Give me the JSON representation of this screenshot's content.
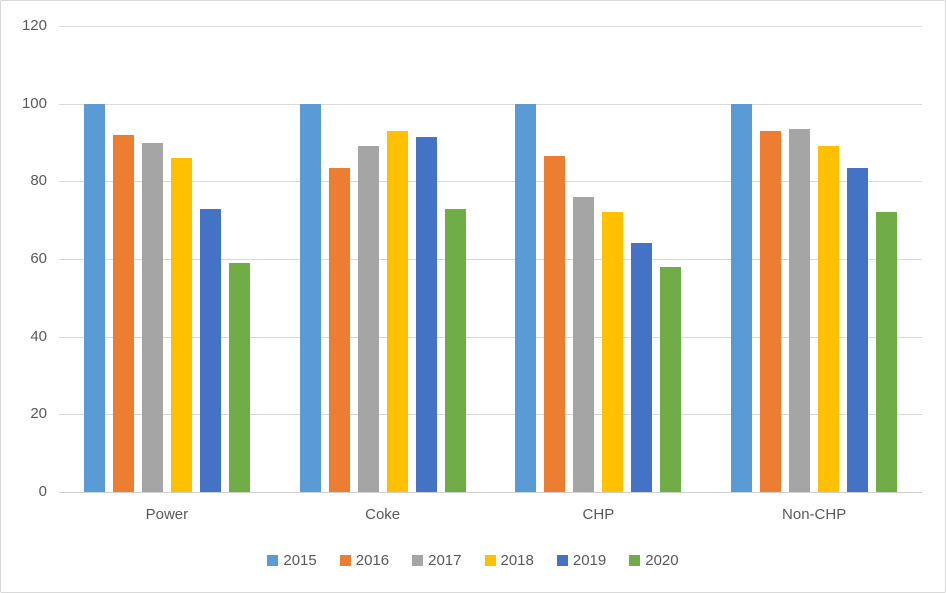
{
  "chart_data": {
    "type": "bar",
    "title": "",
    "xlabel": "",
    "ylabel": "",
    "categories": [
      "Power",
      "Coke",
      "CHP",
      "Non-CHP"
    ],
    "series": [
      {
        "name": "2015",
        "color": "#5B9BD5",
        "values": [
          100,
          100,
          100,
          100
        ]
      },
      {
        "name": "2016",
        "color": "#ED7D31",
        "values": [
          92,
          83.5,
          86.5,
          93
        ]
      },
      {
        "name": "2017",
        "color": "#A5A5A5",
        "values": [
          90,
          89,
          76,
          93.5
        ]
      },
      {
        "name": "2018",
        "color": "#FFC000",
        "values": [
          86,
          93,
          72,
          89
        ]
      },
      {
        "name": "2019",
        "color": "#4472C4",
        "values": [
          73,
          91.3,
          64,
          83.5
        ]
      },
      {
        "name": "2020",
        "color": "#70AD47",
        "values": [
          59,
          73,
          58,
          72
        ]
      }
    ],
    "ylim": [
      0,
      120
    ],
    "yticks": [
      0,
      20,
      40,
      60,
      80,
      100,
      120
    ],
    "grid": true,
    "legend_position": "bottom",
    "style": {
      "gridline_color": "#D9D9D9",
      "axis_line_color": "#D0D0D0",
      "axis_text_color": "#595959",
      "border_color": "#D9D9D9",
      "background_color": "#FFFFFF"
    }
  }
}
